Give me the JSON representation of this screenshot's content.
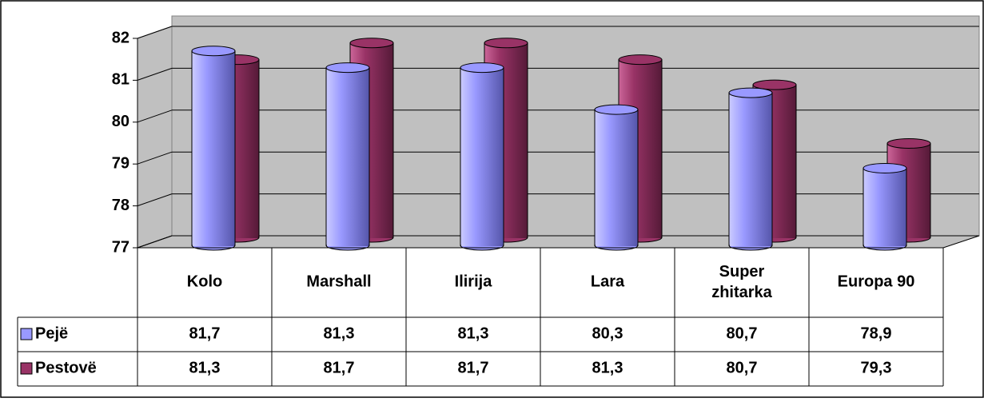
{
  "chart_data": {
    "type": "bar3d",
    "categories": [
      "Kolo",
      "Marshall",
      "Ilirija",
      "Lara",
      "Super zhitarka",
      "Europa 90"
    ],
    "series": [
      {
        "name": "Pejë",
        "color": "#9999ff",
        "values": [
          81.7,
          81.3,
          81.3,
          80.3,
          80.7,
          78.9
        ],
        "value_labels": [
          "81,7",
          "81,3",
          "81,3",
          "80,3",
          "80,7",
          "78,9"
        ]
      },
      {
        "name": "Pestovë",
        "color": "#993366",
        "values": [
          81.3,
          81.7,
          81.7,
          81.3,
          80.7,
          79.3
        ],
        "value_labels": [
          "81,3",
          "81,7",
          "81,7",
          "81,3",
          "80,7",
          "79,3"
        ]
      }
    ],
    "ylim": [
      77,
      82
    ],
    "yticks": [
      77,
      78,
      79,
      80,
      81,
      82
    ],
    "grid": true
  }
}
